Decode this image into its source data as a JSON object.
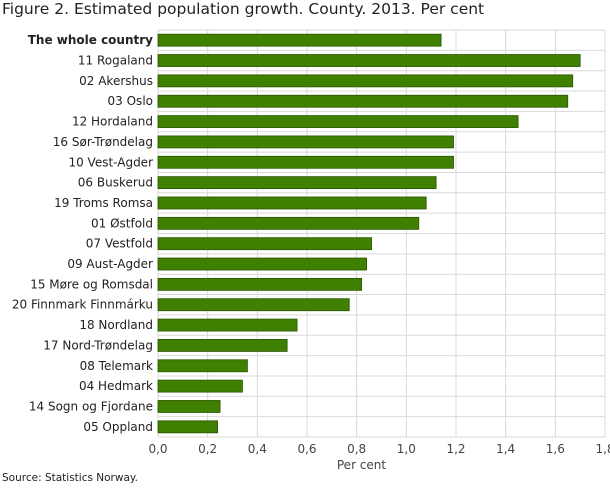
{
  "chart_data": {
    "type": "bar",
    "orientation": "horizontal",
    "title": "Figure 2.  Estimated population growth. County. 2013. Per cent",
    "xlabel": "Per cent",
    "ylabel": "",
    "xlim": [
      0,
      1.8
    ],
    "xticks": [
      "0,0",
      "0,2",
      "0,4",
      "0,6",
      "0,8",
      "1,0",
      "1,2",
      "1,4",
      "1,6",
      "1,8"
    ],
    "grid": true,
    "categories": [
      "The whole country",
      "11 Rogaland",
      "02 Akershus",
      "03 Oslo",
      "12 Hordaland",
      "16 Sør-Trøndelag",
      "10 Vest-Agder",
      "06 Buskerud",
      "19 Troms Romsa",
      "01 Østfold",
      "07 Vestfold",
      "09 Aust-Agder",
      "15 Møre og Romsdal",
      "20 Finnmark Finnmárku",
      "18 Nordland",
      "17 Nord-Trøndelag",
      "08 Telemark",
      "04 Hedmark",
      "14 Sogn og Fjordane",
      "05 Oppland"
    ],
    "values": [
      1.14,
      1.7,
      1.67,
      1.65,
      1.45,
      1.19,
      1.19,
      1.12,
      1.08,
      1.05,
      0.86,
      0.84,
      0.82,
      0.77,
      0.56,
      0.52,
      0.36,
      0.34,
      0.25,
      0.24
    ],
    "bar_color": "#3f8000",
    "source": "Source: Statistics Norway."
  }
}
